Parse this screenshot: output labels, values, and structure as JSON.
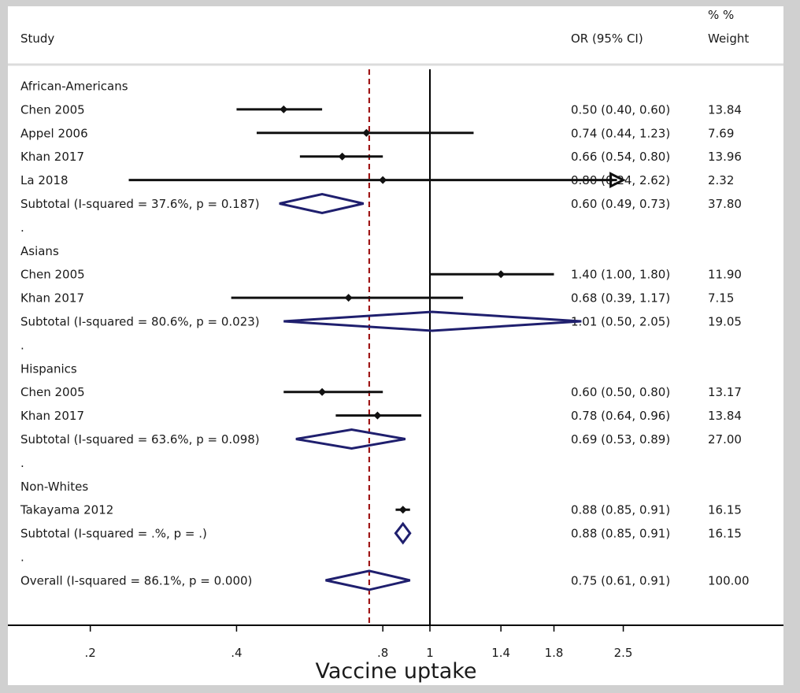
{
  "header": {
    "study": "Study",
    "or_ci": "OR (95% CI)",
    "pct": "%  %",
    "weight": "Weight"
  },
  "colors": {
    "point": "#111111",
    "diamond": "#1f1f6e",
    "null_line": "#000000",
    "overall_line": "#a01818"
  },
  "chart_data": {
    "type": "forest",
    "scale": "log",
    "null_value": 1,
    "overall_value": 0.75,
    "xlim": [
      0.2,
      2.5
    ],
    "xticks": [
      0.2,
      0.4,
      0.8,
      1,
      1.4,
      1.8,
      2.5
    ],
    "xtick_labels": [
      ".2",
      ".4",
      ".8",
      "1",
      "1.4",
      "1.8",
      "2.5"
    ],
    "xlabel": "Vaccine uptake",
    "rows": [
      {
        "kind": "group",
        "label": "African-Americans"
      },
      {
        "kind": "study",
        "label": "Chen 2005",
        "or": 0.5,
        "lo": 0.4,
        "hi": 0.6,
        "ci": "0.50 (0.40, 0.60)",
        "weight": "13.84"
      },
      {
        "kind": "study",
        "label": "Appel 2006",
        "or": 0.74,
        "lo": 0.44,
        "hi": 1.23,
        "ci": "0.74 (0.44, 1.23)",
        "weight": "7.69"
      },
      {
        "kind": "study",
        "label": "Khan 2017",
        "or": 0.66,
        "lo": 0.54,
        "hi": 0.8,
        "ci": "0.66 (0.54, 0.80)",
        "weight": "13.96"
      },
      {
        "kind": "study",
        "label": "La 2018",
        "or": 0.8,
        "lo": 0.24,
        "hi": 2.62,
        "ci": "0.80 (0.24, 2.62)",
        "weight": "2.32",
        "arrow": true
      },
      {
        "kind": "subtotal",
        "label": "Subtotal  (I-squared = 37.6%, p = 0.187)",
        "or": 0.6,
        "lo": 0.49,
        "hi": 0.73,
        "ci": "0.60 (0.49, 0.73)",
        "weight": "37.80"
      },
      {
        "kind": "dot",
        "label": "."
      },
      {
        "kind": "group",
        "label": "Asians"
      },
      {
        "kind": "study",
        "label": "Chen 2005",
        "or": 1.4,
        "lo": 1.0,
        "hi": 1.8,
        "ci": "1.40 (1.00, 1.80)",
        "weight": "11.90"
      },
      {
        "kind": "study",
        "label": "Khan 2017",
        "or": 0.68,
        "lo": 0.39,
        "hi": 1.17,
        "ci": "0.68 (0.39, 1.17)",
        "weight": "7.15"
      },
      {
        "kind": "subtotal",
        "label": "Subtotal  (I-squared = 80.6%, p = 0.023)",
        "or": 1.01,
        "lo": 0.5,
        "hi": 2.05,
        "ci": "1.01 (0.50, 2.05)",
        "weight": "19.05"
      },
      {
        "kind": "dot",
        "label": "."
      },
      {
        "kind": "group",
        "label": "Hispanics"
      },
      {
        "kind": "study",
        "label": "Chen 2005",
        "or": 0.6,
        "lo": 0.5,
        "hi": 0.8,
        "ci": "0.60 (0.50, 0.80)",
        "weight": "13.17"
      },
      {
        "kind": "study",
        "label": "Khan 2017",
        "or": 0.78,
        "lo": 0.64,
        "hi": 0.96,
        "ci": "0.78 (0.64, 0.96)",
        "weight": "13.84"
      },
      {
        "kind": "subtotal",
        "label": "Subtotal  (I-squared = 63.6%, p = 0.098)",
        "or": 0.69,
        "lo": 0.53,
        "hi": 0.89,
        "ci": "0.69 (0.53, 0.89)",
        "weight": "27.00"
      },
      {
        "kind": "dot",
        "label": "."
      },
      {
        "kind": "group",
        "label": "Non-Whites"
      },
      {
        "kind": "study",
        "label": "Takayama 2012",
        "or": 0.88,
        "lo": 0.85,
        "hi": 0.91,
        "ci": "0.88 (0.85, 0.91)",
        "weight": "16.15"
      },
      {
        "kind": "subtotal",
        "label": "Subtotal  (I-squared = .%, p = .)",
        "or": 0.88,
        "lo": 0.85,
        "hi": 0.91,
        "ci": "0.88 (0.85, 0.91)",
        "weight": "16.15"
      },
      {
        "kind": "dot",
        "label": "."
      },
      {
        "kind": "overall",
        "label": "Overall  (I-squared = 86.1%, p = 0.000)",
        "or": 0.75,
        "lo": 0.61,
        "hi": 0.91,
        "ci": "0.75 (0.61, 0.91)",
        "weight": "100.00"
      }
    ]
  }
}
